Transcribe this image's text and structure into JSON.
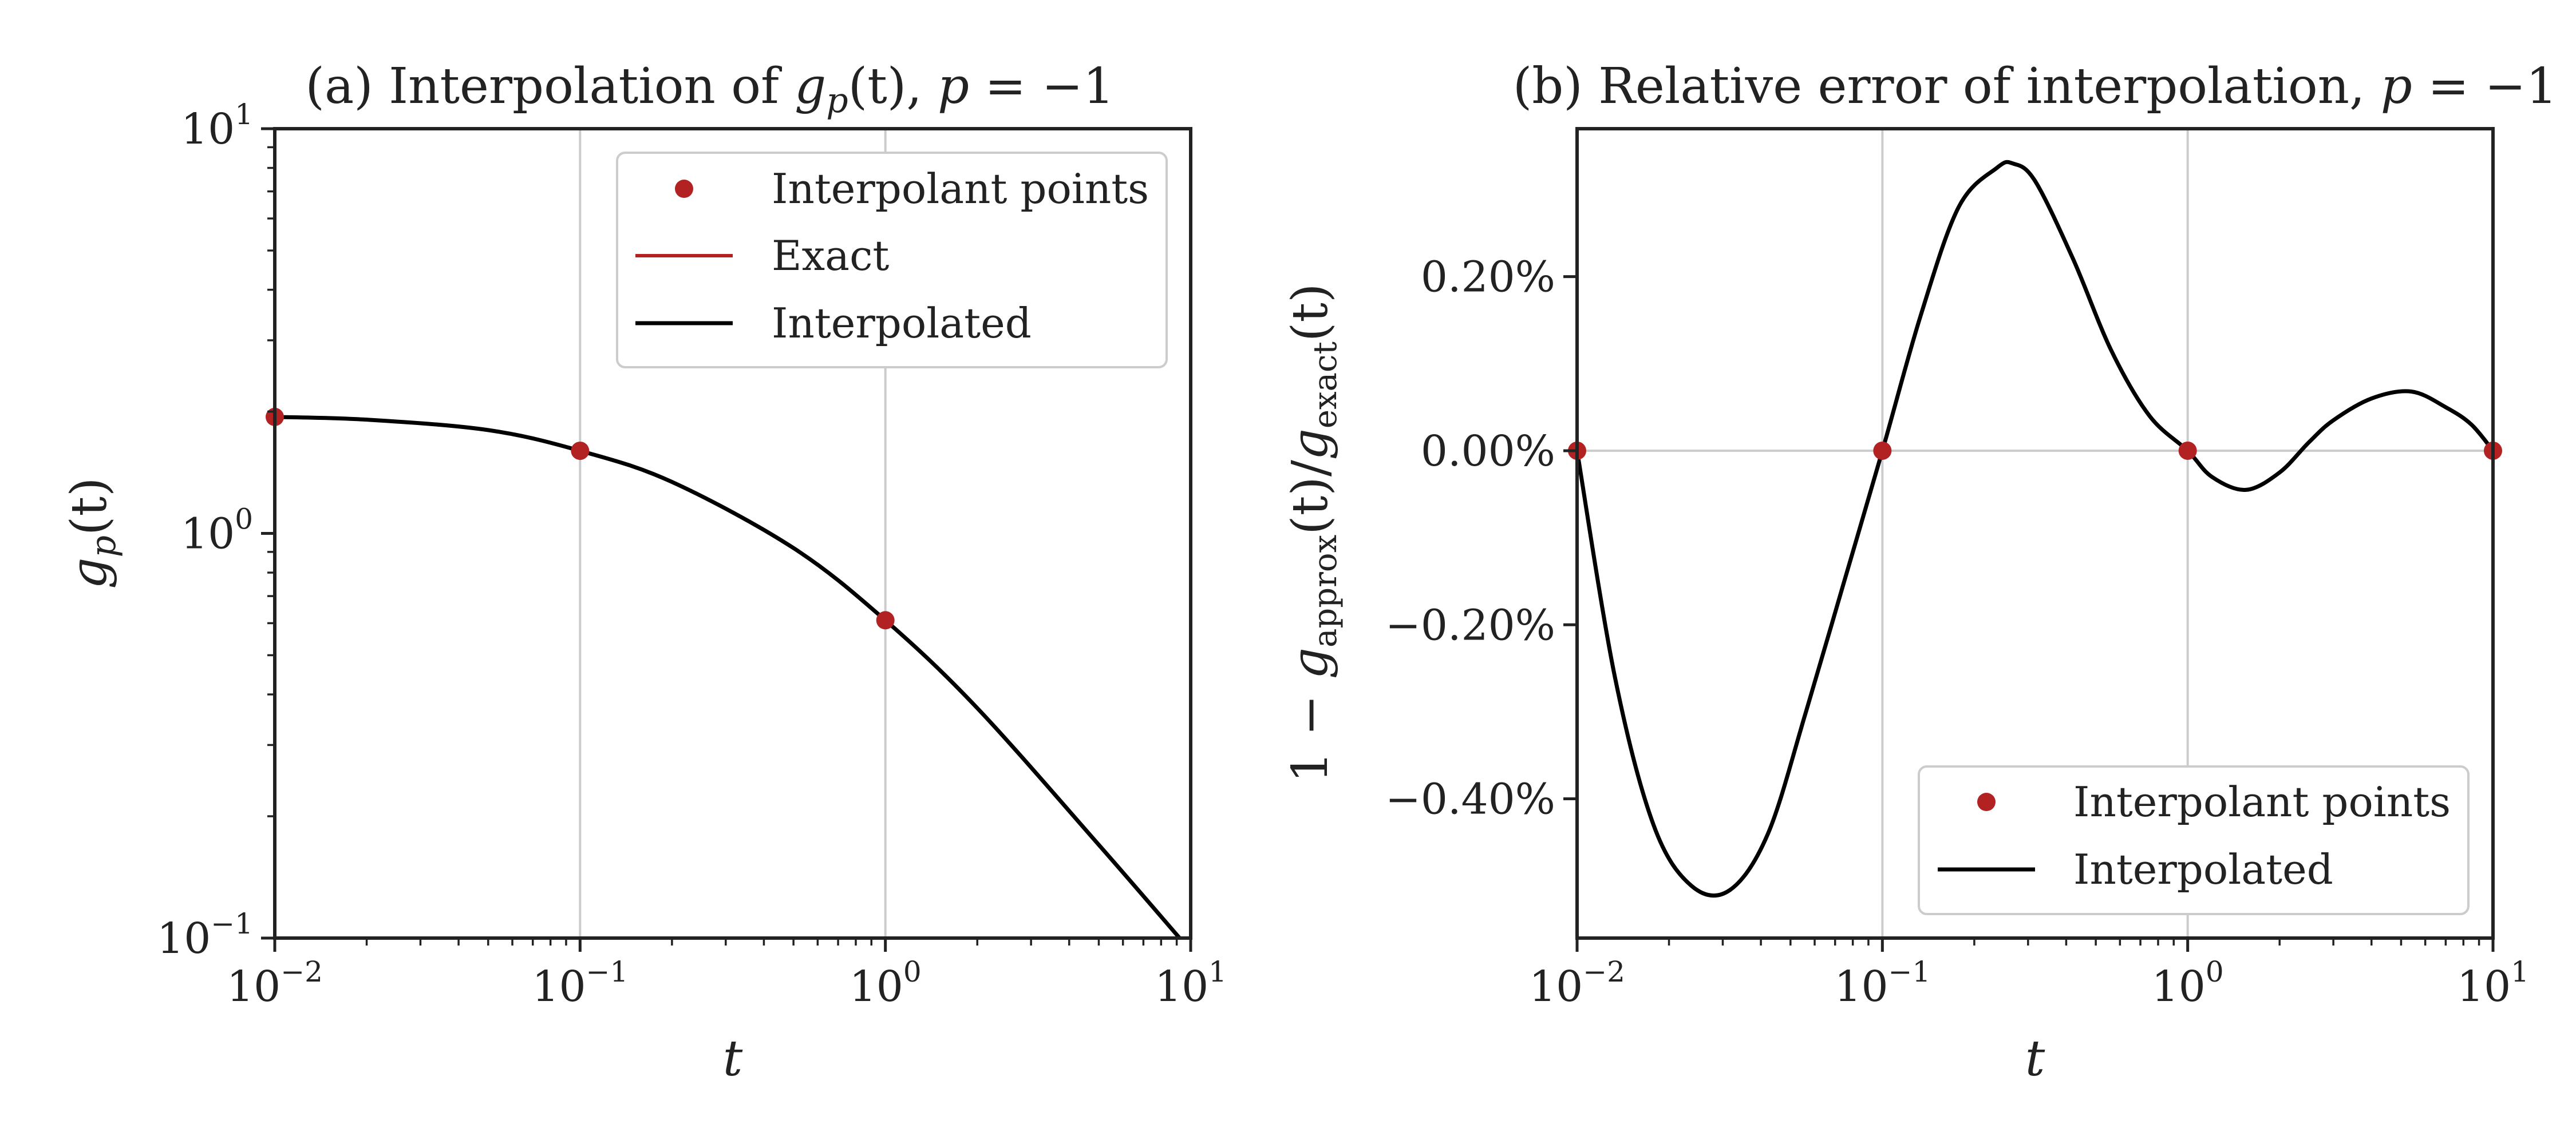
{
  "chart_data": [
    {
      "type": "line",
      "title": "(a) Interpolation of g_p(t), p = −1",
      "title_parts": {
        "prefix": "(a) Interpolation of ",
        "func": "g",
        "sub": "p",
        "args": "(t), ",
        "pvar": "p",
        "eq": " = −1"
      },
      "xlabel": "t",
      "ylabel": "g_p(t)",
      "ylabel_parts": {
        "func": "g",
        "sub": "p",
        "args": "(t)"
      },
      "xscale": "log",
      "yscale": "log",
      "xlim": [
        0.01,
        10
      ],
      "ylim": [
        0.1,
        10
      ],
      "xticks": [
        {
          "base": "10",
          "exp": "−2"
        },
        {
          "base": "10",
          "exp": "−1"
        },
        {
          "base": "10",
          "exp": "0"
        },
        {
          "base": "10",
          "exp": "1"
        }
      ],
      "yticks": [
        {
          "base": "10",
          "exp": "−1"
        },
        {
          "base": "10",
          "exp": "0"
        },
        {
          "base": "10",
          "exp": "1"
        }
      ],
      "grid": "x-major",
      "legend_position": "upper-right",
      "legend": [
        "Interpolant points",
        "Exact",
        "Interpolated"
      ],
      "series": [
        {
          "name": "Interpolant points",
          "marker": "dot",
          "color": "#b22222",
          "x": [
            0.01,
            0.1,
            1,
            10
          ],
          "y": [
            1.94,
            1.6,
            0.61,
            0.093
          ]
        },
        {
          "name": "Exact",
          "color": "#b22222",
          "x": [
            0.01,
            0.02,
            0.05,
            0.1,
            0.2,
            0.5,
            1,
            2,
            5,
            9.2
          ],
          "y": [
            1.94,
            1.91,
            1.8,
            1.6,
            1.34,
            0.92,
            0.61,
            0.37,
            0.17,
            0.1
          ]
        },
        {
          "name": "Interpolated",
          "color": "#000000",
          "x": [
            0.01,
            0.02,
            0.05,
            0.1,
            0.2,
            0.5,
            1,
            2,
            5,
            9.2
          ],
          "y": [
            1.94,
            1.91,
            1.8,
            1.6,
            1.34,
            0.92,
            0.61,
            0.37,
            0.17,
            0.1
          ]
        }
      ]
    },
    {
      "type": "line",
      "title": "(b) Relative error of interpolation, p = −1",
      "title_parts": {
        "prefix": "(b) Relative error of interpolation, ",
        "pvar": "p",
        "eq": " = −1"
      },
      "xlabel": "t",
      "ylabel": "1 − g_approx(t)/g_exact(t)",
      "ylabel_parts": {
        "lead": "1 − ",
        "func": "g",
        "sub1": "approx",
        "mid": "(t)/",
        "sub2": "exact",
        "tail": "(t)"
      },
      "xscale": "log",
      "yscale": "linear",
      "xlim": [
        0.01,
        10
      ],
      "ylim": [
        -0.56,
        0.37
      ],
      "yunit": "%",
      "xticks": [
        {
          "base": "10",
          "exp": "−2"
        },
        {
          "base": "10",
          "exp": "−1"
        },
        {
          "base": "10",
          "exp": "0"
        },
        {
          "base": "10",
          "exp": "1"
        }
      ],
      "yticks": [
        {
          "value": 0.2,
          "label": "0.20%"
        },
        {
          "value": 0.0,
          "label": "0.00%"
        },
        {
          "value": -0.2,
          "label": "−0.20%"
        },
        {
          "value": -0.4,
          "label": "−0.40%"
        }
      ],
      "grid": "x-major, y=0",
      "legend_position": "lower-right",
      "legend": [
        "Interpolant points",
        "Interpolated"
      ],
      "series": [
        {
          "name": "Interpolant points",
          "marker": "dot",
          "color": "#b22222",
          "x": [
            0.01,
            0.1,
            1,
            10
          ],
          "y": [
            0,
            0,
            0,
            0
          ]
        },
        {
          "name": "Interpolated",
          "color": "#000000",
          "x": [
            0.01,
            0.0133,
            0.0178,
            0.0237,
            0.0316,
            0.0422,
            0.0562,
            0.075,
            0.1,
            0.1334,
            0.1778,
            0.2371,
            0.2675,
            0.3162,
            0.4217,
            0.5623,
            0.7499,
            1,
            1.2,
            1.55,
            2.0,
            2.5,
            3.0,
            4.0,
            5.4,
            7.0,
            8.5,
            10
          ],
          "y": [
            0,
            -0.26,
            -0.43,
            -0.5,
            -0.505,
            -0.44,
            -0.3,
            -0.15,
            0,
            0.155,
            0.28,
            0.325,
            0.33,
            0.31,
            0.22,
            0.115,
            0.04,
            0,
            -0.03,
            -0.045,
            -0.025,
            0.01,
            0.035,
            0.06,
            0.068,
            0.05,
            0.03,
            0
          ]
        }
      ]
    }
  ]
}
